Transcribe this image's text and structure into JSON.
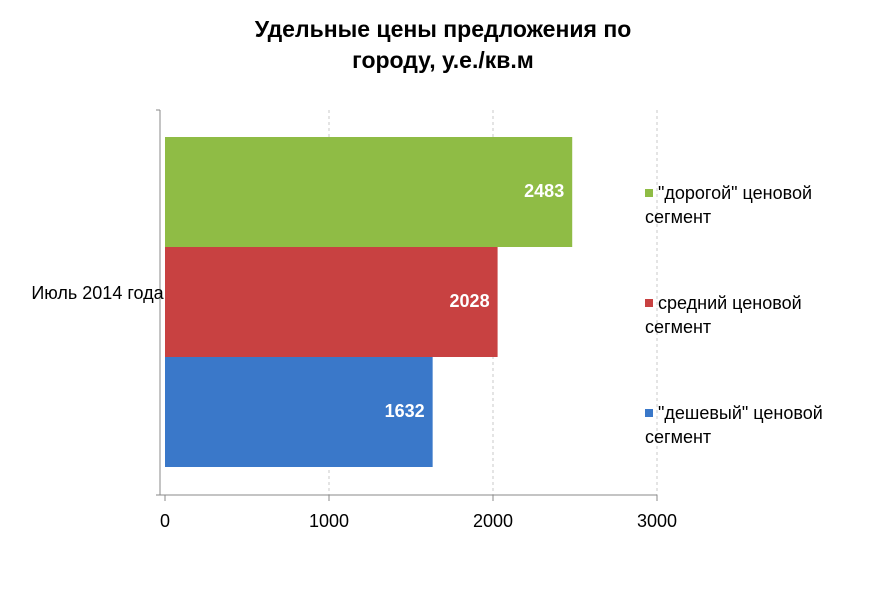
{
  "chart_data": {
    "type": "bar",
    "orientation": "horizontal",
    "title": "Удельные цены предложения по городу, у.е./кв.м",
    "categories": [
      "Июль 2014 года"
    ],
    "series": [
      {
        "name": "\"дорогой\" ценовой сегмент",
        "color": "#8fbc45",
        "values": [
          2483
        ]
      },
      {
        "name": "средний ценовой сегмент",
        "color": "#c84141",
        "values": [
          2028
        ]
      },
      {
        "name": "\"дешевый\" ценовой сегмент",
        "color": "#3a78c9",
        "values": [
          1632
        ]
      }
    ],
    "xlim": [
      0,
      3000
    ],
    "xticks": [
      0,
      1000,
      2000,
      3000
    ],
    "grid": true,
    "legend": "right"
  }
}
